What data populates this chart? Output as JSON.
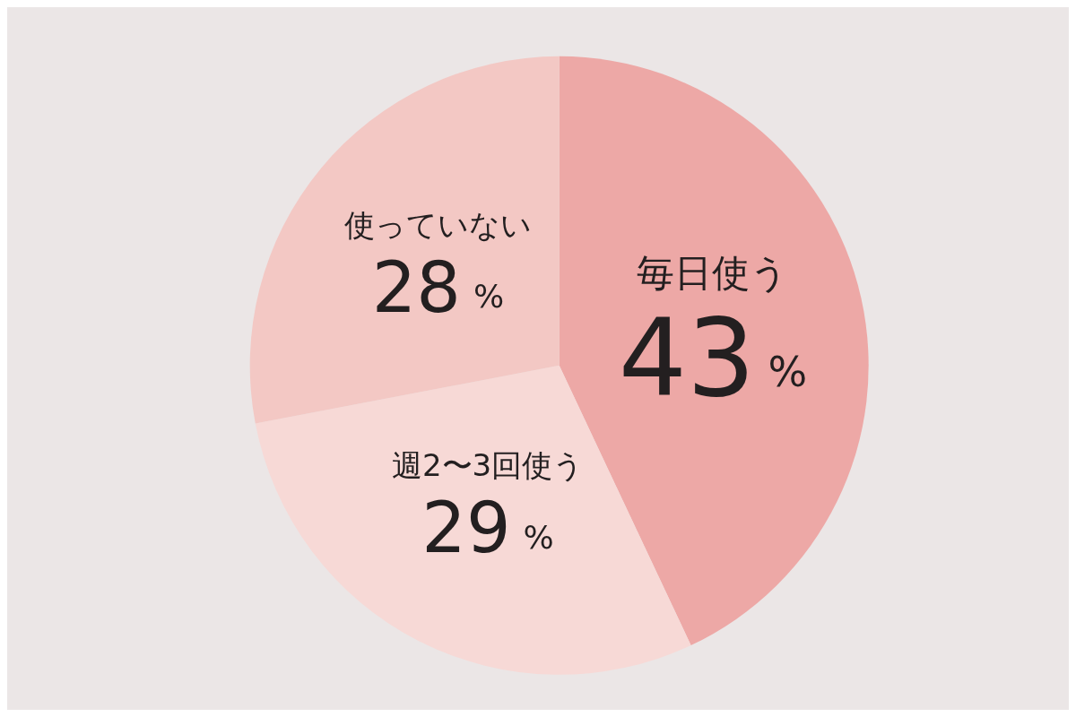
{
  "chart_data": {
    "type": "pie",
    "categories": [
      "毎日使う",
      "週2〜3回使う",
      "使っていない"
    ],
    "values": [
      43,
      29,
      28
    ],
    "value_labels": [
      "43%",
      "29%",
      "28%"
    ],
    "colors": [
      "#eda8a6",
      "#f7d9d6",
      "#f3c8c4"
    ],
    "legend": false
  }
}
